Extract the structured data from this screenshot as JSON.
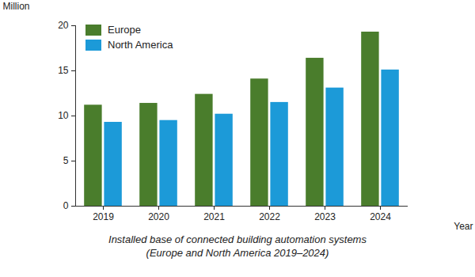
{
  "chart_data": {
    "type": "bar",
    "title": "Installed base of connected building automation systems",
    "subtitle": "(Europe and North America 2019–2024)",
    "x_label": "Year",
    "y_label": "Million",
    "categories": [
      "2019",
      "2020",
      "2021",
      "2022",
      "2023",
      "2024"
    ],
    "series": [
      {
        "name": "Europe",
        "color": "#4a7d2c",
        "values": [
          11.2,
          11.4,
          12.4,
          14.1,
          16.4,
          19.3
        ]
      },
      {
        "name": "North America",
        "color": "#1c9ad8",
        "values": [
          9.3,
          9.5,
          10.2,
          11.5,
          13.1,
          15.1
        ]
      }
    ],
    "ylim": [
      0,
      20
    ],
    "yticks": [
      0,
      5,
      10,
      15,
      20
    ],
    "grid": false,
    "legend": "upper left"
  }
}
